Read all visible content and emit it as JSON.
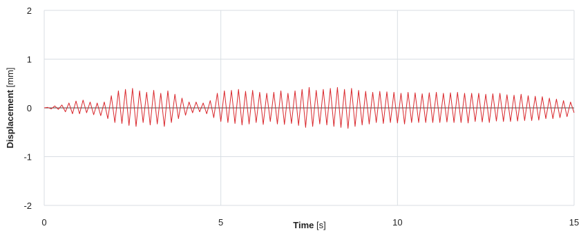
{
  "chart_data": {
    "type": "line",
    "xlabel": {
      "bold": "Time",
      "unit": " [s]"
    },
    "ylabel": {
      "bold": "Displacement",
      "unit": " [mm]"
    },
    "xlim": [
      0,
      15
    ],
    "ylim": [
      -2,
      2
    ],
    "x_ticks": [
      "0",
      "5",
      "10",
      "15"
    ],
    "y_ticks": [
      "2",
      "1",
      "0",
      "-1",
      "-2"
    ],
    "grid": true,
    "legend": "none",
    "series": [
      {
        "color": "#d9262b",
        "x": [
          0.0,
          0.1,
          0.2,
          0.3,
          0.4,
          0.5,
          0.6,
          0.7,
          0.8,
          0.9,
          1.0,
          1.1,
          1.2,
          1.3,
          1.4,
          1.5,
          1.6,
          1.7,
          1.8,
          1.9,
          2.0,
          2.1,
          2.2,
          2.3,
          2.4,
          2.5,
          2.6,
          2.7,
          2.8,
          2.9,
          3.0,
          3.1,
          3.2,
          3.3,
          3.4,
          3.5,
          3.6,
          3.7,
          3.8,
          3.9,
          4.0,
          4.1,
          4.2,
          4.3,
          4.4,
          4.5,
          4.6,
          4.7,
          4.8,
          4.9,
          5.0,
          5.1,
          5.2,
          5.3,
          5.4,
          5.5,
          5.6,
          5.7,
          5.8,
          5.9,
          6.0,
          6.1,
          6.2,
          6.3,
          6.4,
          6.5,
          6.6,
          6.7,
          6.8,
          6.9,
          7.0,
          7.1,
          7.2,
          7.3,
          7.4,
          7.5,
          7.6,
          7.7,
          7.8,
          7.9,
          8.0,
          8.1,
          8.2,
          8.3,
          8.4,
          8.5,
          8.6,
          8.7,
          8.8,
          8.9,
          9.0,
          9.1,
          9.2,
          9.3,
          9.4,
          9.5,
          9.6,
          9.7,
          9.8,
          9.9,
          10.0,
          10.1,
          10.2,
          10.3,
          10.4,
          10.5,
          10.6,
          10.7,
          10.8,
          10.9,
          11.0,
          11.1,
          11.2,
          11.3,
          11.4,
          11.5,
          11.6,
          11.7,
          11.8,
          11.9,
          12.0,
          12.1,
          12.2,
          12.3,
          12.4,
          12.5,
          12.6,
          12.7,
          12.8,
          12.9,
          13.0,
          13.1,
          13.2,
          13.3,
          13.4,
          13.5,
          13.6,
          13.7,
          13.8,
          13.9,
          14.0,
          14.1,
          14.2,
          14.3,
          14.4,
          14.5,
          14.6,
          14.7,
          14.8,
          14.9,
          15.0
        ],
        "y": [
          0.0,
          0.01,
          -0.02,
          0.04,
          -0.03,
          0.06,
          -0.08,
          0.1,
          -0.12,
          0.14,
          -0.12,
          0.16,
          -0.1,
          0.12,
          -0.14,
          0.1,
          -0.16,
          0.12,
          -0.22,
          0.25,
          -0.3,
          0.35,
          -0.32,
          0.38,
          -0.36,
          0.4,
          -0.38,
          0.35,
          -0.3,
          0.32,
          -0.35,
          0.36,
          -0.33,
          0.3,
          -0.38,
          0.35,
          -0.3,
          0.28,
          -0.22,
          0.2,
          -0.15,
          0.12,
          -0.1,
          0.12,
          -0.08,
          0.1,
          -0.12,
          0.15,
          -0.2,
          0.3,
          -0.28,
          0.35,
          -0.3,
          0.36,
          -0.32,
          0.38,
          -0.35,
          0.34,
          -0.33,
          0.36,
          -0.3,
          0.32,
          -0.34,
          0.3,
          -0.28,
          0.32,
          -0.33,
          0.35,
          -0.34,
          0.3,
          -0.32,
          0.35,
          -0.36,
          0.38,
          -0.4,
          0.42,
          -0.38,
          0.36,
          -0.33,
          0.38,
          -0.35,
          0.4,
          -0.38,
          0.42,
          -0.4,
          0.38,
          -0.42,
          0.4,
          -0.38,
          0.36,
          -0.35,
          0.34,
          -0.33,
          0.32,
          -0.3,
          0.34,
          -0.32,
          0.33,
          -0.3,
          0.32,
          -0.31,
          0.3,
          -0.33,
          0.32,
          -0.3,
          0.31,
          -0.3,
          0.29,
          -0.3,
          0.31,
          -0.3,
          0.32,
          -0.3,
          0.3,
          -0.29,
          0.31,
          -0.3,
          0.32,
          -0.3,
          0.3,
          -0.31,
          0.3,
          -0.28,
          0.3,
          -0.29,
          0.28,
          -0.3,
          0.29,
          -0.27,
          0.3,
          -0.28,
          0.27,
          -0.28,
          0.26,
          -0.27,
          0.28,
          -0.26,
          0.25,
          -0.26,
          0.24,
          -0.25,
          0.23,
          -0.22,
          0.2,
          -0.22,
          0.18,
          -0.2,
          0.15,
          -0.18,
          0.12,
          -0.1
        ]
      }
    ]
  }
}
